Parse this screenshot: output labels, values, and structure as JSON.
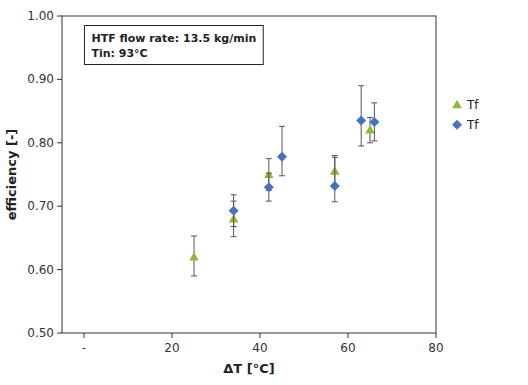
{
  "chart_data": {
    "type": "scatter",
    "xlabel": "ΔT [°C]",
    "ylabel": "efficiency [-]",
    "annotations": [
      "HTF flow rate: 13.5 kg/min",
      "Tin: 93°C"
    ],
    "xlim": [
      -5,
      80
    ],
    "ylim": [
      0.5,
      1.0
    ],
    "xticks": [
      {
        "value": 0,
        "label": "-"
      },
      20,
      40,
      60,
      80
    ],
    "yticks": [
      {
        "value": 0.5,
        "label": "0.50"
      },
      {
        "value": 0.6,
        "label": "0.60"
      },
      {
        "value": 0.7,
        "label": "0.70"
      },
      {
        "value": 0.8,
        "label": "0.80"
      },
      {
        "value": 0.9,
        "label": "0.90"
      },
      {
        "value": 1.0,
        "label": "1.00"
      }
    ],
    "grid": false,
    "legend": "right",
    "series": [
      {
        "name": "Tf",
        "color": "#8db83a",
        "marker": "triangle",
        "x": [
          25,
          34,
          42,
          57,
          65
        ],
        "values": [
          0.62,
          0.68,
          0.75,
          0.755,
          0.82
        ],
        "yerr_lo": [
          0.03,
          0.028,
          0.025,
          0.025,
          0.02
        ],
        "yerr_hi": [
          0.033,
          0.028,
          0.025,
          0.025,
          0.02
        ]
      },
      {
        "name": "Tf",
        "color": "#4472c4",
        "marker": "diamond",
        "x": [
          34,
          42,
          45,
          57,
          63,
          66
        ],
        "values": [
          0.693,
          0.73,
          0.778,
          0.732,
          0.835,
          0.833
        ],
        "yerr_lo": [
          0.025,
          0.022,
          0.03,
          0.025,
          0.04,
          0.03
        ],
        "yerr_hi": [
          0.025,
          0.022,
          0.048,
          0.045,
          0.055,
          0.03
        ]
      }
    ]
  }
}
